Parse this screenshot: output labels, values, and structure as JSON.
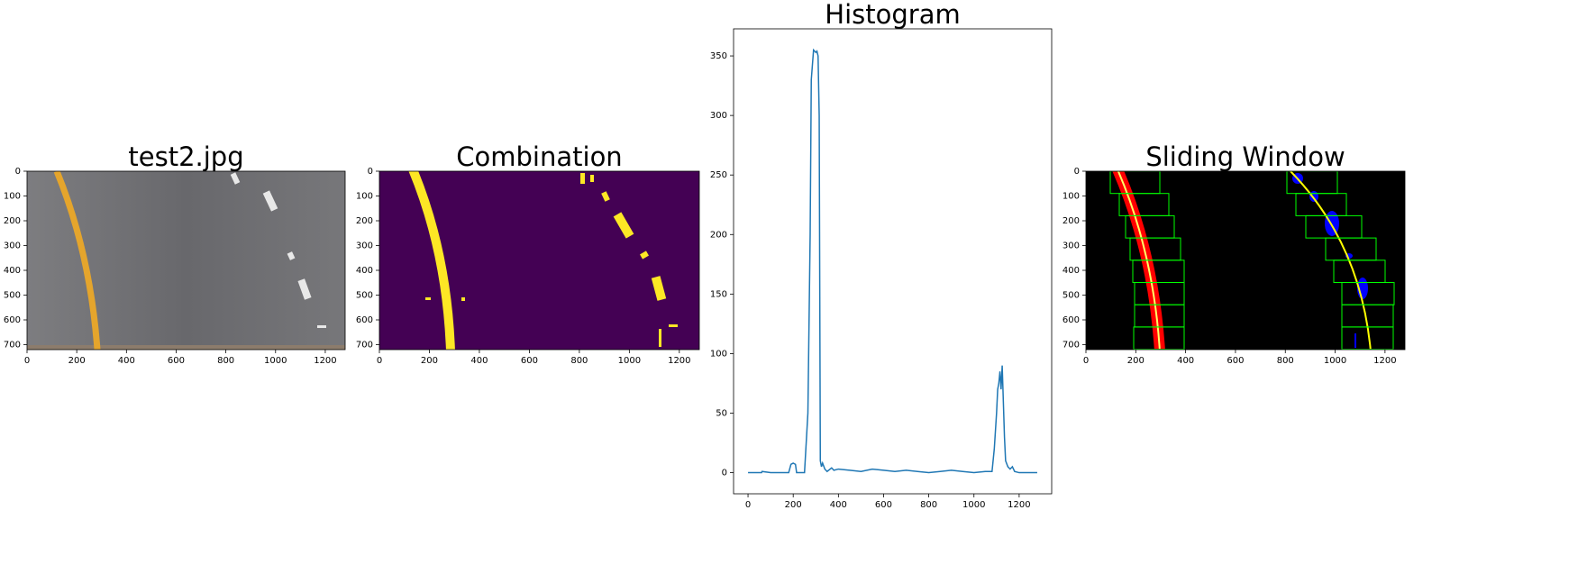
{
  "chart_data": [
    {
      "type": "image",
      "title": "test2.jpg",
      "xlim": [
        0,
        1280
      ],
      "ylim": [
        720,
        0
      ],
      "xticks": [
        0,
        200,
        400,
        600,
        800,
        1000,
        1200
      ],
      "yticks": [
        0,
        100,
        200,
        300,
        400,
        500,
        600,
        700
      ]
    },
    {
      "type": "image",
      "title": "Combination",
      "xlim": [
        0,
        1280
      ],
      "ylim": [
        720,
        0
      ],
      "xticks": [
        0,
        200,
        400,
        600,
        800,
        1000,
        1200
      ],
      "yticks": [
        0,
        100,
        200,
        300,
        400,
        500,
        600,
        700
      ]
    },
    {
      "type": "line",
      "title": "Histogram",
      "color": "#1f77b4",
      "xlim": [
        -64,
        1344
      ],
      "ylim": [
        -17.75,
        372.75
      ],
      "xticks": [
        0,
        200,
        400,
        600,
        800,
        1000,
        1200
      ],
      "yticks": [
        0,
        50,
        100,
        150,
        200,
        250,
        300,
        350
      ],
      "x": [
        0,
        60,
        62,
        100,
        150,
        180,
        190,
        200,
        210,
        215,
        250,
        265,
        275,
        280,
        290,
        300,
        305,
        310,
        315,
        320,
        325,
        330,
        340,
        350,
        370,
        380,
        400,
        450,
        500,
        550,
        600,
        650,
        700,
        750,
        800,
        850,
        900,
        950,
        1000,
        1050,
        1080,
        1090,
        1100,
        1105,
        1110,
        1115,
        1120,
        1125,
        1130,
        1135,
        1140,
        1150,
        1160,
        1170,
        1180,
        1200,
        1250,
        1280
      ],
      "values": [
        0,
        0,
        1,
        0,
        0,
        0,
        7,
        8,
        7,
        0,
        0,
        50,
        200,
        330,
        355,
        353,
        354,
        350,
        300,
        10,
        5,
        8,
        3,
        1,
        4,
        2,
        3,
        2,
        1,
        3,
        2,
        1,
        2,
        1,
        0,
        1,
        2,
        1,
        0,
        1,
        1,
        20,
        50,
        70,
        75,
        85,
        70,
        90,
        60,
        30,
        10,
        5,
        3,
        5,
        1,
        0,
        0,
        0
      ]
    },
    {
      "type": "image",
      "title": "Sliding Window",
      "xlim": [
        0,
        1280
      ],
      "ylim": [
        720,
        0
      ],
      "xticks": [
        0,
        200,
        400,
        600,
        800,
        1000,
        1200
      ],
      "yticks": [
        0,
        100,
        200,
        300,
        400,
        500,
        600,
        700
      ]
    }
  ]
}
